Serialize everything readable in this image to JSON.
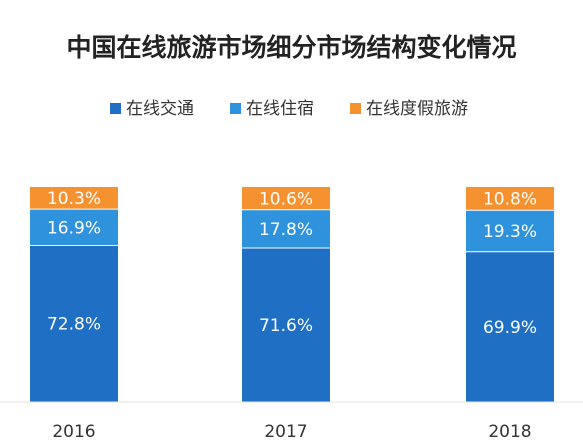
{
  "chart_data": {
    "type": "bar",
    "stacked": true,
    "title": "中国在线旅游市场细分市场结构变化情况",
    "categories": [
      "2016",
      "2017",
      "2018"
    ],
    "series": [
      {
        "name": "在线交通",
        "color": "#1f6fc5",
        "values": [
          72.8,
          71.6,
          69.9
        ]
      },
      {
        "name": "在线住宿",
        "color": "#2e92dc",
        "values": [
          16.9,
          17.8,
          19.3
        ]
      },
      {
        "name": "在线度假旅游",
        "color": "#f5922f",
        "values": [
          10.3,
          10.6,
          10.8
        ]
      }
    ],
    "value_suffix": "%",
    "ylim": [
      0,
      100
    ],
    "legend_position": "top",
    "grid": false
  }
}
